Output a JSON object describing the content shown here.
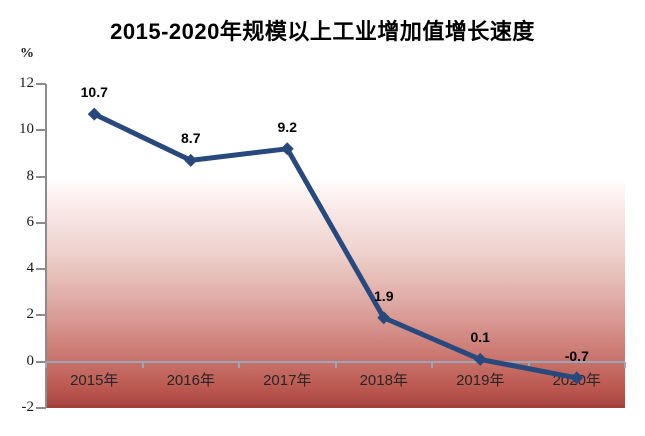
{
  "chart_data": {
    "type": "line",
    "title": "2015-2020年规模以上工业增加值增长速度",
    "unit_label": "%",
    "categories": [
      "2015年",
      "2016年",
      "2017年",
      "2018年",
      "2019年",
      "2020年"
    ],
    "values": [
      10.7,
      8.7,
      9.2,
      1.9,
      0.1,
      -0.7
    ],
    "data_labels": [
      "10.7",
      "8.7",
      "9.2",
      "1.9",
      "0.1",
      "-0.7"
    ],
    "yticks": [
      12,
      10,
      8,
      6,
      4,
      2,
      0,
      -2
    ],
    "ylim": [
      -2,
      12
    ],
    "xlabel": "",
    "ylabel": "%",
    "legend": "none",
    "grid": "zero-line-only",
    "plot_background": "white-to-red-vertical-gradient",
    "colors": {
      "line": "#27497d",
      "marker": "#27497d",
      "title_text": "#000000",
      "axis": "#8c8c8c",
      "zero_line": "#9aa7b8",
      "ytick_label": "#1a1a1a",
      "xtick_label": "#262626",
      "data_label": "#000000",
      "gradient_top": "#ffffff",
      "gradient_bottom": "#ab4641",
      "plot_bottom_edge": "#a13f3c"
    }
  }
}
